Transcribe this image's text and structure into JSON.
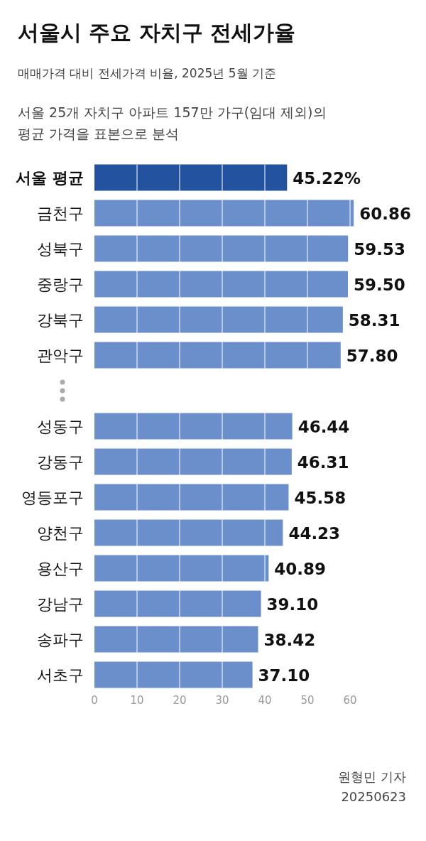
{
  "chart_data": {
    "type": "bar",
    "orientation": "horizontal",
    "title": "서울시 주요 자치구 전세가율",
    "subtitle": "매매가격 대비 전세가격 비율, 2025년 5월 기준",
    "annotations": [
      "서울 25개 자치구 아파트 157만 가구(임대 제외)의 평균 가격을 표본으로 분석",
      "원형민 기자",
      "20250623"
    ],
    "categories": [
      "서울 평균",
      "금천구",
      "성북구",
      "중랑구",
      "강북구",
      "관악구",
      null,
      "성동구",
      "강동구",
      "영등포구",
      "양천구",
      "용산구",
      "강남구",
      "송파구",
      "서초구"
    ],
    "values": [
      45.22,
      60.86,
      59.53,
      59.5,
      58.31,
      57.8,
      null,
      46.44,
      46.31,
      45.58,
      44.23,
      40.89,
      39.1,
      38.42,
      37.1
    ],
    "value_labels": [
      "45.22%",
      "60.86",
      "59.53",
      "59.50",
      "58.31",
      "57.80",
      null,
      "46.44",
      "46.31",
      "45.58",
      "44.23",
      "40.89",
      "39.10",
      "38.42",
      "37.10"
    ],
    "colors": [
      "#23529e",
      "#6a8fcb",
      "#6a8fcb",
      "#6a8fcb",
      "#6a8fcb",
      "#6a8fcb",
      null,
      "#6a8fcb",
      "#6a8fcb",
      "#6a8fcb",
      "#6a8fcb",
      "#6a8fcb",
      "#6a8fcb",
      "#6a8fcb",
      "#6a8fcb"
    ],
    "xlim": [
      0,
      61
    ],
    "xticks": [
      0,
      10,
      20,
      30,
      40,
      50,
      60
    ],
    "grid": "x"
  }
}
